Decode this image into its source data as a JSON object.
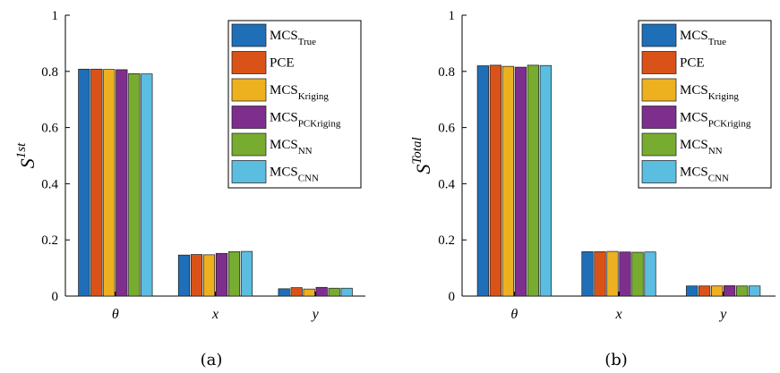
{
  "chart_data": [
    {
      "type": "bar",
      "caption": "(a)",
      "ylabel": "S",
      "ylabel_sup": "1st",
      "categories": [
        "θ",
        "x",
        "y"
      ],
      "ylim": [
        0,
        1
      ],
      "yticks": [
        "0",
        "0.2",
        "0.4",
        "0.6",
        "0.8",
        "1"
      ],
      "legend_position": "top-right",
      "series": [
        {
          "name": "MCS",
          "sub": "True",
          "color": "#1f6fb8",
          "values": [
            0.808,
            0.146,
            0.026
          ]
        },
        {
          "name": "PCE",
          "sub": "",
          "color": "#d95319",
          "values": [
            0.808,
            0.148,
            0.03
          ]
        },
        {
          "name": "MCS",
          "sub": "Kriging",
          "color": "#edb120",
          "values": [
            0.807,
            0.147,
            0.025
          ]
        },
        {
          "name": "MCS",
          "sub": "PCKriging",
          "color": "#7e2f8e",
          "values": [
            0.806,
            0.152,
            0.031
          ]
        },
        {
          "name": "MCS",
          "sub": "NN",
          "color": "#77ac30",
          "values": [
            0.792,
            0.158,
            0.028
          ]
        },
        {
          "name": "MCS",
          "sub": "CNN",
          "color": "#5bbde0",
          "values": [
            0.791,
            0.159,
            0.028
          ]
        }
      ]
    },
    {
      "type": "bar",
      "caption": "(b)",
      "ylabel": "S",
      "ylabel_sup": "Total",
      "categories": [
        "θ",
        "x",
        "y"
      ],
      "ylim": [
        0,
        1
      ],
      "yticks": [
        "0",
        "0.2",
        "0.4",
        "0.6",
        "0.8",
        "1"
      ],
      "legend_position": "top-right",
      "series": [
        {
          "name": "MCS",
          "sub": "True",
          "color": "#1f6fb8",
          "values": [
            0.82,
            0.158,
            0.036
          ]
        },
        {
          "name": "PCE",
          "sub": "",
          "color": "#d95319",
          "values": [
            0.822,
            0.158,
            0.036
          ]
        },
        {
          "name": "MCS",
          "sub": "Kriging",
          "color": "#edb120",
          "values": [
            0.818,
            0.159,
            0.036
          ]
        },
        {
          "name": "MCS",
          "sub": "PCKriging",
          "color": "#7e2f8e",
          "values": [
            0.815,
            0.157,
            0.037
          ]
        },
        {
          "name": "MCS",
          "sub": "NN",
          "color": "#77ac30",
          "values": [
            0.822,
            0.156,
            0.036
          ]
        },
        {
          "name": "MCS",
          "sub": "CNN",
          "color": "#5bbde0",
          "values": [
            0.821,
            0.157,
            0.036
          ]
        }
      ]
    }
  ]
}
